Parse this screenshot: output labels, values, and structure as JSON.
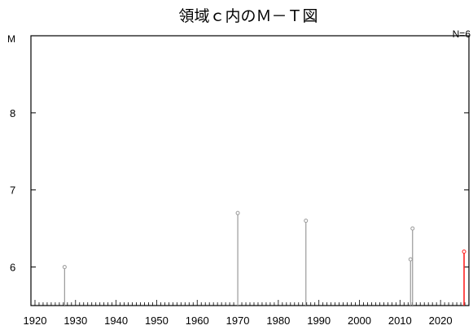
{
  "chart_data": {
    "type": "stem",
    "title": "領域ｃ内のＭ－Ｔ図",
    "ylabel": "M",
    "count_label": "N=6",
    "xlim": [
      1919,
      2027
    ],
    "ylim": [
      5.5,
      9.0
    ],
    "x_ticks": [
      1920,
      1930,
      1940,
      1950,
      1960,
      1970,
      1980,
      1990,
      2000,
      2010,
      2020
    ],
    "x_tick_labels": [
      "1920",
      "1930",
      "1940",
      "1950",
      "1960",
      "1970",
      "1980",
      "1990",
      "2000",
      "2010",
      "2020"
    ],
    "y_ticks": [
      6,
      7,
      8
    ],
    "y_tick_labels": [
      "6",
      "7",
      "8"
    ],
    "grid": false,
    "colors": {
      "normal": "#999999",
      "latest": "#ff2222"
    },
    "points": [
      {
        "x": 1927.3,
        "y": 6.0,
        "latest": false
      },
      {
        "x": 1970.0,
        "y": 6.7,
        "latest": false
      },
      {
        "x": 1986.8,
        "y": 6.6,
        "latest": false
      },
      {
        "x": 2012.6,
        "y": 6.1,
        "latest": false
      },
      {
        "x": 2013.1,
        "y": 6.5,
        "latest": false
      },
      {
        "x": 2025.8,
        "y": 6.2,
        "latest": true
      }
    ]
  }
}
